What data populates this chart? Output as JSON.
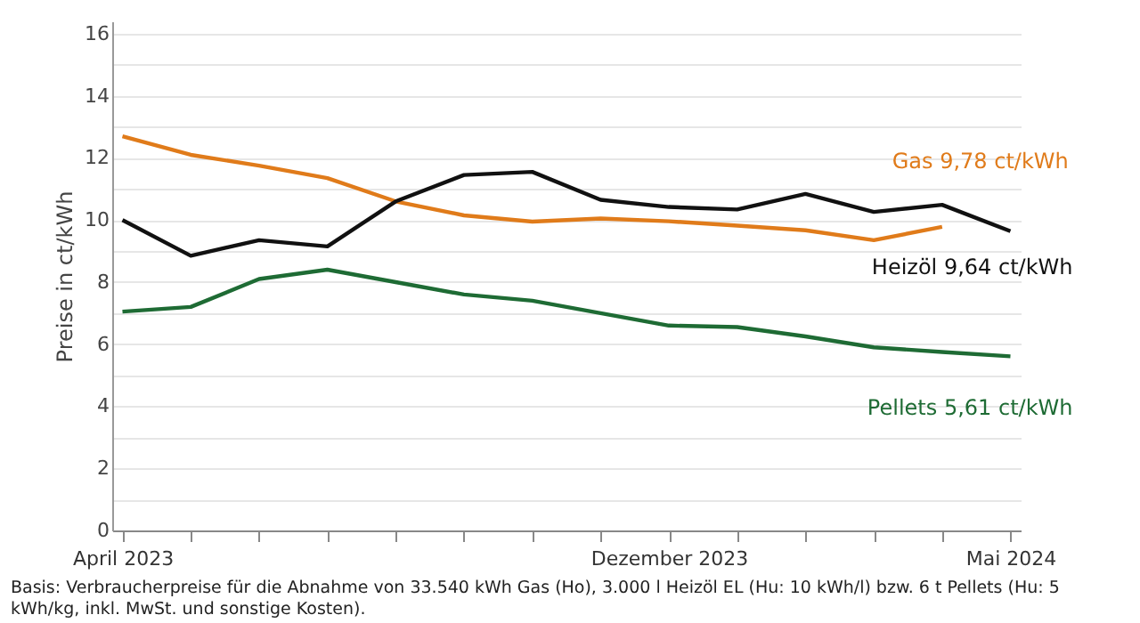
{
  "chart_data": {
    "type": "line",
    "ylabel": "Preise in ct/kWh",
    "categories": [
      "April 2023",
      null,
      null,
      null,
      null,
      null,
      null,
      null,
      "Dezember 2023",
      null,
      null,
      null,
      null,
      "Mai 2024"
    ],
    "series": [
      {
        "name": "Gas 9,78 ct/kWh",
        "color": "#e07b1a",
        "values": [
          12.7,
          12.1,
          11.75,
          11.35,
          10.6,
          10.15,
          9.95,
          10.05,
          9.96,
          9.82,
          9.67,
          9.35,
          9.78,
          null
        ]
      },
      {
        "name": "Heizöl 9,64 ct/kWh",
        "color": "#111111",
        "values": [
          10.0,
          8.85,
          9.35,
          9.15,
          10.6,
          11.45,
          11.55,
          10.65,
          10.42,
          10.34,
          10.84,
          10.26,
          10.49,
          9.64
        ]
      },
      {
        "name": "Pellets 5,61 ct/kWh",
        "color": "#1e6b34",
        "values": [
          7.05,
          7.2,
          8.1,
          8.4,
          8.0,
          7.6,
          7.4,
          7.0,
          6.6,
          6.55,
          6.25,
          5.9,
          5.75,
          5.61
        ]
      }
    ],
    "ylim": [
      0,
      16.4
    ],
    "yticks": [
      0,
      {
        "value": 1,
        "label": null
      },
      2,
      {
        "value": 3,
        "label": null
      },
      4,
      {
        "value": 5,
        "label": null
      },
      6,
      {
        "value": 7,
        "label": null
      },
      8,
      {
        "value": 9,
        "label": null
      },
      10,
      {
        "value": 11,
        "label": null
      },
      12,
      {
        "value": 13,
        "label": null
      },
      14,
      {
        "value": 15,
        "label": null
      },
      16
    ],
    "grid": "y",
    "marker": "none",
    "line_style": "solid",
    "annotations": [
      "Basis: Verbraucherpreise für die Abnahme von 33.540 kWh Gas (Ho), 3.000 l Heizöl EL (Hu: 10 kWh/l) bzw. 6 t Pellets (Hu: 5 kWh/kg, inkl. MwSt. und sonstige Kosten)."
    ]
  }
}
